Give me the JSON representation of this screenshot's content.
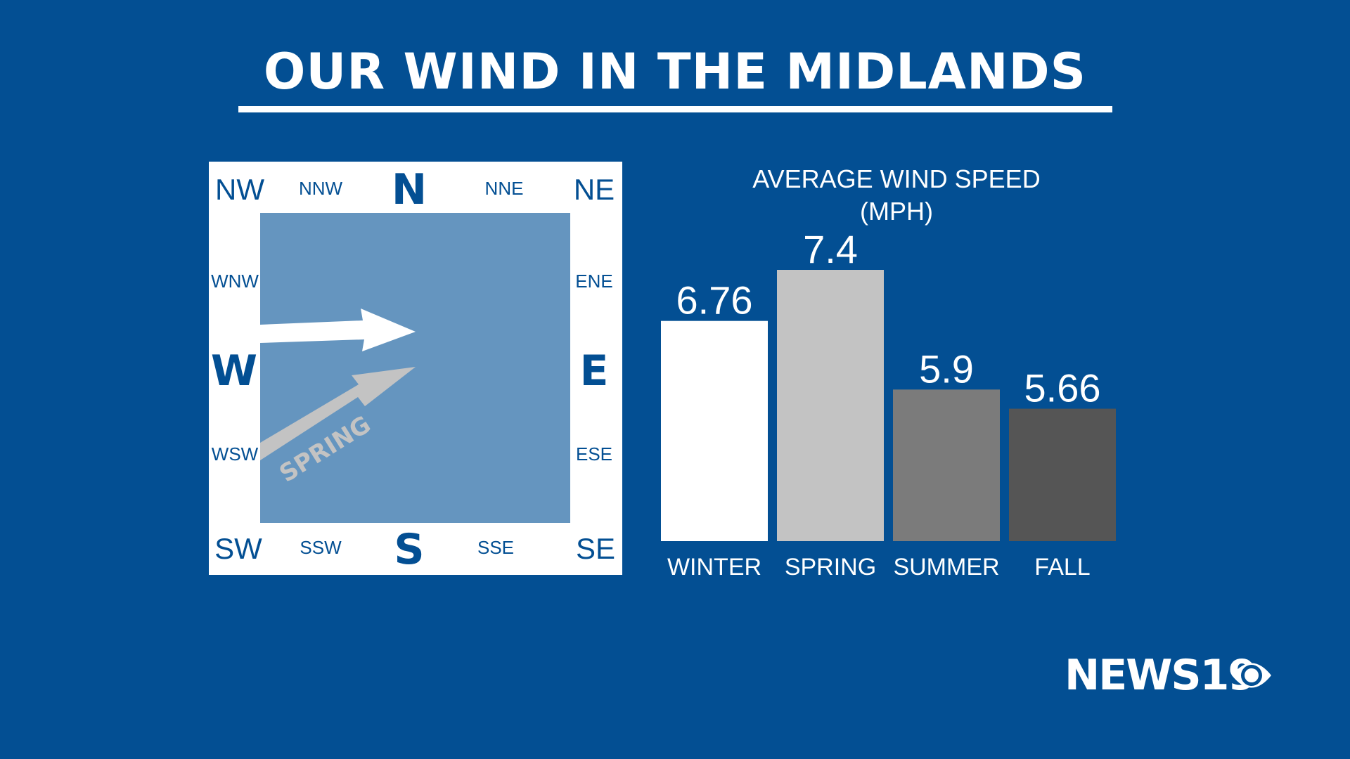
{
  "header": {
    "title": "OUR WIND IN THE MIDLANDS"
  },
  "compass": {
    "directions": {
      "n": "N",
      "s": "S",
      "e": "E",
      "w": "W",
      "nw": "NW",
      "ne": "NE",
      "sw": "SW",
      "se": "SE",
      "nnw": "NNW",
      "nne": "NNE",
      "wnw": "WNW",
      "ene": "ENE",
      "wsw": "WSW",
      "ese": "ESE",
      "ssw": "SSW",
      "sse": "SSE"
    },
    "arrow_label": "SPRING",
    "colors": {
      "frame": "#ffffff",
      "field": "#6595bf",
      "text": "#034f93",
      "main_arrow": "#ffffff",
      "spring_arrow": "#c3c3c3"
    }
  },
  "chart_data": {
    "type": "bar",
    "title": "AVERAGE WIND SPEED\n(MPH)",
    "title_lines": [
      "AVERAGE WIND SPEED",
      "(MPH)"
    ],
    "categories": [
      "WINTER",
      "SPRING",
      "SUMMER",
      "FALL"
    ],
    "values": [
      6.76,
      7.4,
      5.9,
      5.66
    ],
    "value_labels": [
      "6.76",
      "7.4",
      "5.9",
      "5.66"
    ],
    "colors": [
      "#ffffff",
      "#c3c3c3",
      "#7b7b7b",
      "#555555"
    ],
    "ylim": [
      4,
      7.4
    ],
    "xlabel": "",
    "ylabel": ""
  },
  "logo": {
    "text": "NEWS19"
  },
  "colors": {
    "background": "#034f93"
  }
}
